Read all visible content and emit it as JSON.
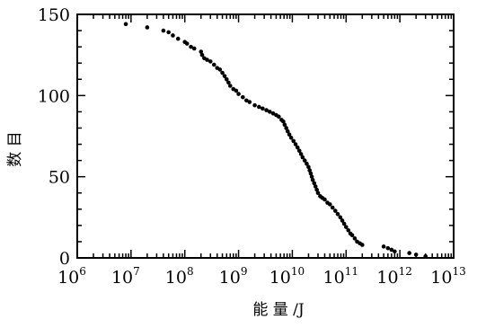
{
  "chart_data": {
    "type": "scatter",
    "title": "",
    "xlabel": "能 量 /J",
    "ylabel": "数 目",
    "x_scale": "log",
    "xlim": [
      1000000.0,
      10000000000000.0
    ],
    "ylim": [
      0,
      150
    ],
    "x_tick_labels": [
      {
        "base": "10",
        "exp": "6"
      },
      {
        "base": "10",
        "exp": "7"
      },
      {
        "base": "10",
        "exp": "8"
      },
      {
        "base": "10",
        "exp": "9"
      },
      {
        "base": "10",
        "exp": "10"
      },
      {
        "base": "10",
        "exp": "11"
      },
      {
        "base": "10",
        "exp": "12"
      },
      {
        "base": "10",
        "exp": "13"
      }
    ],
    "y_ticks": [
      0,
      50,
      100,
      150
    ],
    "y_tick_labels": [
      "0",
      "50",
      "100",
      "150"
    ],
    "grid": false,
    "series": [
      {
        "color": "#000000",
        "points": [
          [
            8000000.0,
            144
          ],
          [
            20000000.0,
            142
          ],
          [
            40000000.0,
            140
          ],
          [
            50000000.0,
            139
          ],
          [
            60000000.0,
            137
          ],
          [
            75000000.0,
            135
          ],
          [
            100000000.0,
            133
          ],
          [
            110000000.0,
            132
          ],
          [
            130000000.0,
            130
          ],
          [
            150000000.0,
            129
          ],
          [
            200000000.0,
            127
          ],
          [
            210000000.0,
            125
          ],
          [
            230000000.0,
            123
          ],
          [
            260000000.0,
            122
          ],
          [
            300000000.0,
            121
          ],
          [
            350000000.0,
            119
          ],
          [
            400000000.0,
            117
          ],
          [
            450000000.0,
            116
          ],
          [
            500000000.0,
            114
          ],
          [
            550000000.0,
            112
          ],
          [
            600000000.0,
            110
          ],
          [
            650000000.0,
            108
          ],
          [
            700000000.0,
            106
          ],
          [
            800000000.0,
            104
          ],
          [
            900000000.0,
            103
          ],
          [
            1000000000.0,
            101
          ],
          [
            1200000000.0,
            99
          ],
          [
            1400000000.0,
            97
          ],
          [
            1600000000.0,
            96
          ],
          [
            2000000000.0,
            94
          ],
          [
            2400000000.0,
            93
          ],
          [
            2800000000.0,
            92
          ],
          [
            3300000000.0,
            91
          ],
          [
            3800000000.0,
            90
          ],
          [
            4400000000.0,
            89
          ],
          [
            5000000000.0,
            88
          ],
          [
            5600000000.0,
            87
          ],
          [
            6300000000.0,
            85
          ],
          [
            6800000000.0,
            84
          ],
          [
            7200000000.0,
            82
          ],
          [
            7700000000.0,
            80
          ],
          [
            8200000000.0,
            78
          ],
          [
            8800000000.0,
            76
          ],
          [
            9500000000.0,
            74
          ],
          [
            10500000000.0,
            72
          ],
          [
            11500000000.0,
            70
          ],
          [
            12500000000.0,
            68
          ],
          [
            13500000000.0,
            66
          ],
          [
            14500000000.0,
            64
          ],
          [
            15500000000.0,
            62
          ],
          [
            17000000000.0,
            60
          ],
          [
            18500000000.0,
            58
          ],
          [
            20000000000.0,
            56
          ],
          [
            21000000000.0,
            54
          ],
          [
            22000000000.0,
            52
          ],
          [
            23000000000.0,
            50
          ],
          [
            24000000000.0,
            48
          ],
          [
            25500000000.0,
            46
          ],
          [
            27000000000.0,
            44
          ],
          [
            28500000000.0,
            42
          ],
          [
            30000000000.0,
            40
          ],
          [
            33000000000.0,
            38
          ],
          [
            36000000000.0,
            37
          ],
          [
            40000000000.0,
            36
          ],
          [
            45000000000.0,
            34
          ],
          [
            50000000000.0,
            33
          ],
          [
            56000000000.0,
            31
          ],
          [
            63000000000.0,
            29
          ],
          [
            70000000000.0,
            27
          ],
          [
            78000000000.0,
            25
          ],
          [
            85000000000.0,
            23
          ],
          [
            92000000000.0,
            21
          ],
          [
            100000000000.0,
            19
          ],
          [
            110000000000.0,
            17
          ],
          [
            120000000000.0,
            15
          ],
          [
            130000000000.0,
            14
          ],
          [
            145000000000.0,
            12
          ],
          [
            160000000000.0,
            10
          ],
          [
            180000000000.0,
            9
          ],
          [
            200000000000.0,
            8
          ],
          [
            500000000000.0,
            7
          ],
          [
            600000000000.0,
            6
          ],
          [
            700000000000.0,
            5
          ],
          [
            800000000000.0,
            4
          ],
          [
            1500000000000.0,
            3
          ],
          [
            2000000000000.0,
            2
          ],
          [
            3000000000000.0,
            1
          ]
        ]
      }
    ]
  }
}
